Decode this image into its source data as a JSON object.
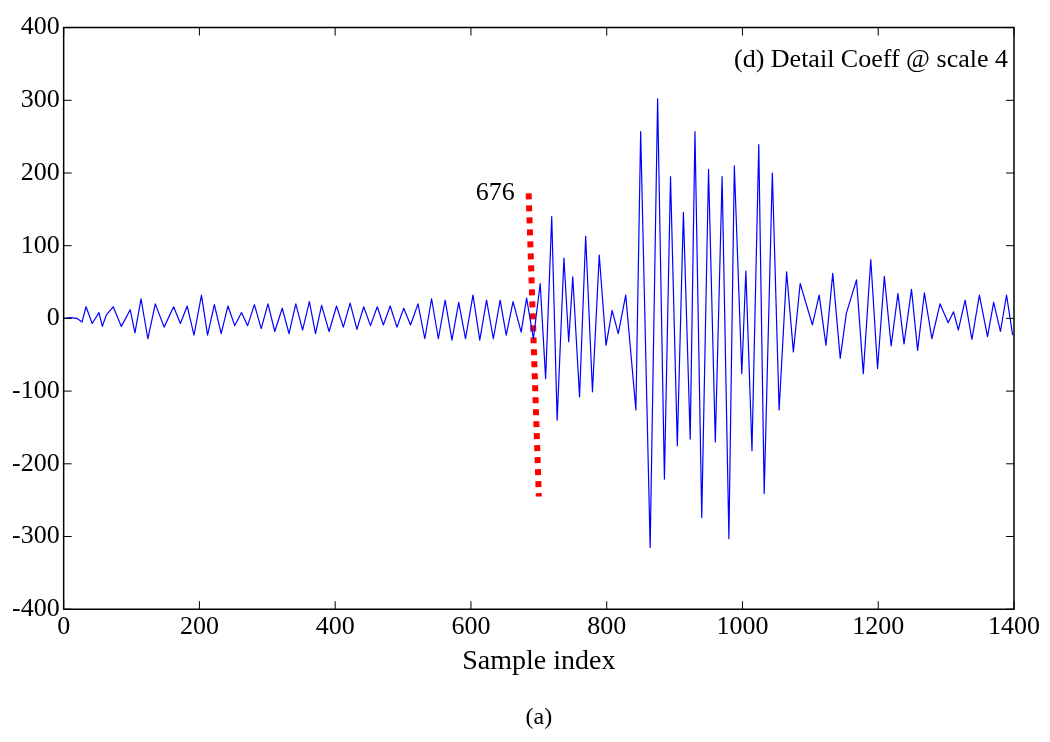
{
  "chart_data": {
    "type": "line",
    "title": "(d) Detail Coeff @ scale 4",
    "xlabel": "Sample index",
    "xlim": [
      0,
      1400
    ],
    "xticks": [
      0,
      200,
      400,
      600,
      800,
      1000,
      1200,
      1400
    ],
    "ylim": [
      -400,
      400
    ],
    "yticks": [
      -400,
      -300,
      -200,
      -100,
      0,
      100,
      200,
      300,
      400
    ],
    "grid": false,
    "legend": false,
    "marker": "none",
    "annotations": [
      {
        "text": "676",
        "x": 685,
        "y": 172
      },
      "(a)"
    ],
    "series": [
      {
        "color": "#0000ff",
        "line_style": "solid",
        "x": [
          0,
          10,
          20,
          27,
          33,
          42,
          52,
          57,
          63,
          73,
          85,
          98,
          105,
          114,
          124,
          135,
          148,
          162,
          172,
          182,
          192,
          203,
          212,
          222,
          232,
          242,
          252,
          262,
          271,
          281,
          291,
          301,
          311,
          322,
          332,
          342,
          352,
          362,
          371,
          380,
          391,
          402,
          412,
          422,
          432,
          442,
          452,
          462,
          471,
          481,
          491,
          501,
          511,
          522,
          532,
          542,
          552,
          562,
          572,
          582,
          592,
          603,
          613,
          623,
          633,
          643,
          652,
          662,
          674,
          682,
          692,
          702,
          710,
          719,
          727,
          737,
          744,
          750,
          760,
          769,
          779,
          789,
          799,
          808,
          817,
          828,
          843,
          850,
          864,
          875,
          885,
          894,
          904,
          913,
          923,
          930,
          940,
          950,
          960,
          970,
          980,
          988,
          999,
          1005,
          1014,
          1024,
          1032,
          1044,
          1054,
          1065,
          1075,
          1085,
          1103,
          1113,
          1123,
          1133,
          1144,
          1153,
          1168,
          1178,
          1189,
          1199,
          1209,
          1219,
          1229,
          1238,
          1249,
          1258,
          1268,
          1279,
          1291,
          1303,
          1311,
          1318,
          1328,
          1338,
          1349,
          1361,
          1370,
          1380,
          1389,
          1398
        ],
        "values": [
          0,
          1,
          0,
          -5,
          16,
          -7,
          8,
          -11,
          5,
          16,
          -11,
          12,
          -20,
          27,
          -28,
          20,
          -12,
          16,
          -7,
          17,
          -23,
          32,
          -23,
          19,
          -21,
          17,
          -10,
          8,
          -10,
          19,
          -14,
          20,
          -18,
          14,
          -21,
          20,
          -16,
          23,
          -21,
          18,
          -18,
          17,
          -12,
          21,
          -15,
          16,
          -10,
          16,
          -9,
          17,
          -12,
          14,
          -9,
          20,
          -28,
          27,
          -28,
          25,
          -30,
          22,
          -28,
          32,
          -30,
          25,
          -28,
          25,
          -23,
          23,
          -19,
          28,
          -28,
          48,
          -83,
          140,
          -140,
          83,
          -32,
          57,
          -108,
          113,
          -101,
          87,
          -37,
          11,
          -21,
          32,
          -126,
          257,
          -315,
          302,
          -221,
          195,
          -175,
          146,
          -166,
          257,
          -274,
          205,
          -170,
          195,
          -303,
          210,
          -76,
          65,
          -182,
          239,
          -241,
          200,
          -126,
          64,
          -46,
          48,
          -9,
          32,
          -37,
          62,
          -55,
          7,
          53,
          -76,
          81,
          -69,
          58,
          -38,
          34,
          -35,
          40,
          -44,
          35,
          -28,
          20,
          -6,
          9,
          -16,
          25,
          -29,
          32,
          -25,
          22,
          -18,
          32,
          -23
        ]
      },
      {
        "type": "line",
        "color": "#ff0000",
        "line_style": "dotted",
        "x": [
          685,
          700
        ],
        "values": [
          172,
          -245
        ]
      }
    ]
  }
}
